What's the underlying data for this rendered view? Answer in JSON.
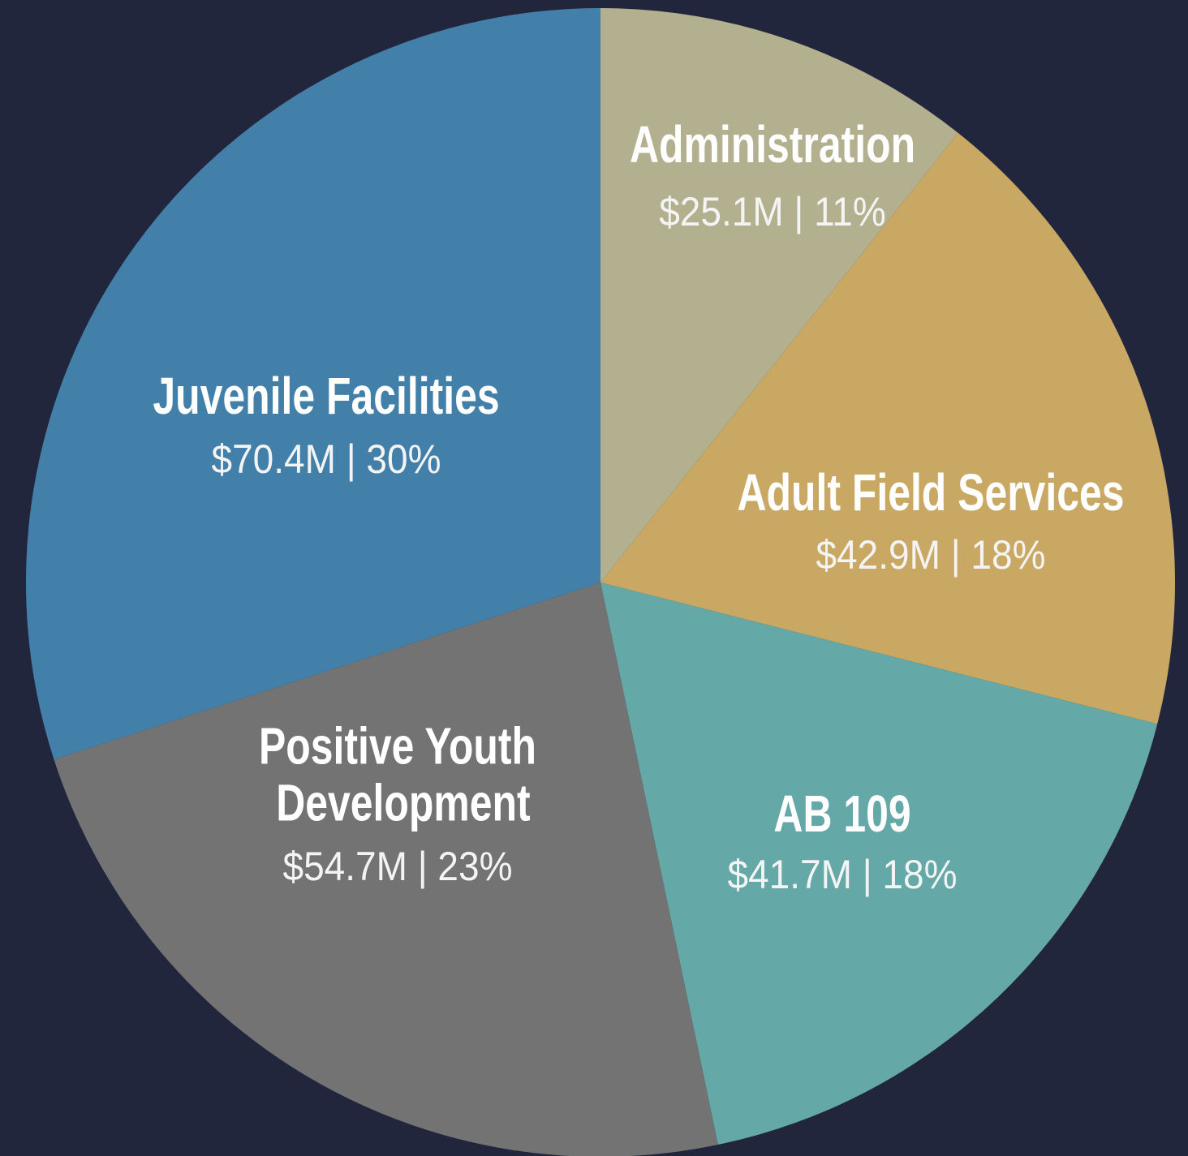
{
  "chart_data": {
    "type": "pie",
    "categories": [
      "Administration",
      "Adult Field Services",
      "AB 109",
      "Positive Youth Development",
      "Juvenile Facilities"
    ],
    "values": [
      25.1,
      42.9,
      41.7,
      54.7,
      70.4
    ],
    "value_labels": [
      "$25.1M | 11%",
      "$42.9M | 18%",
      "$41.7M | 18%",
      "$54.7M | 23%",
      "$70.4M | 30%"
    ],
    "colors": [
      "#b3b08f",
      "#c9a864",
      "#65a8a8",
      "#737373",
      "#4280aa"
    ]
  }
}
